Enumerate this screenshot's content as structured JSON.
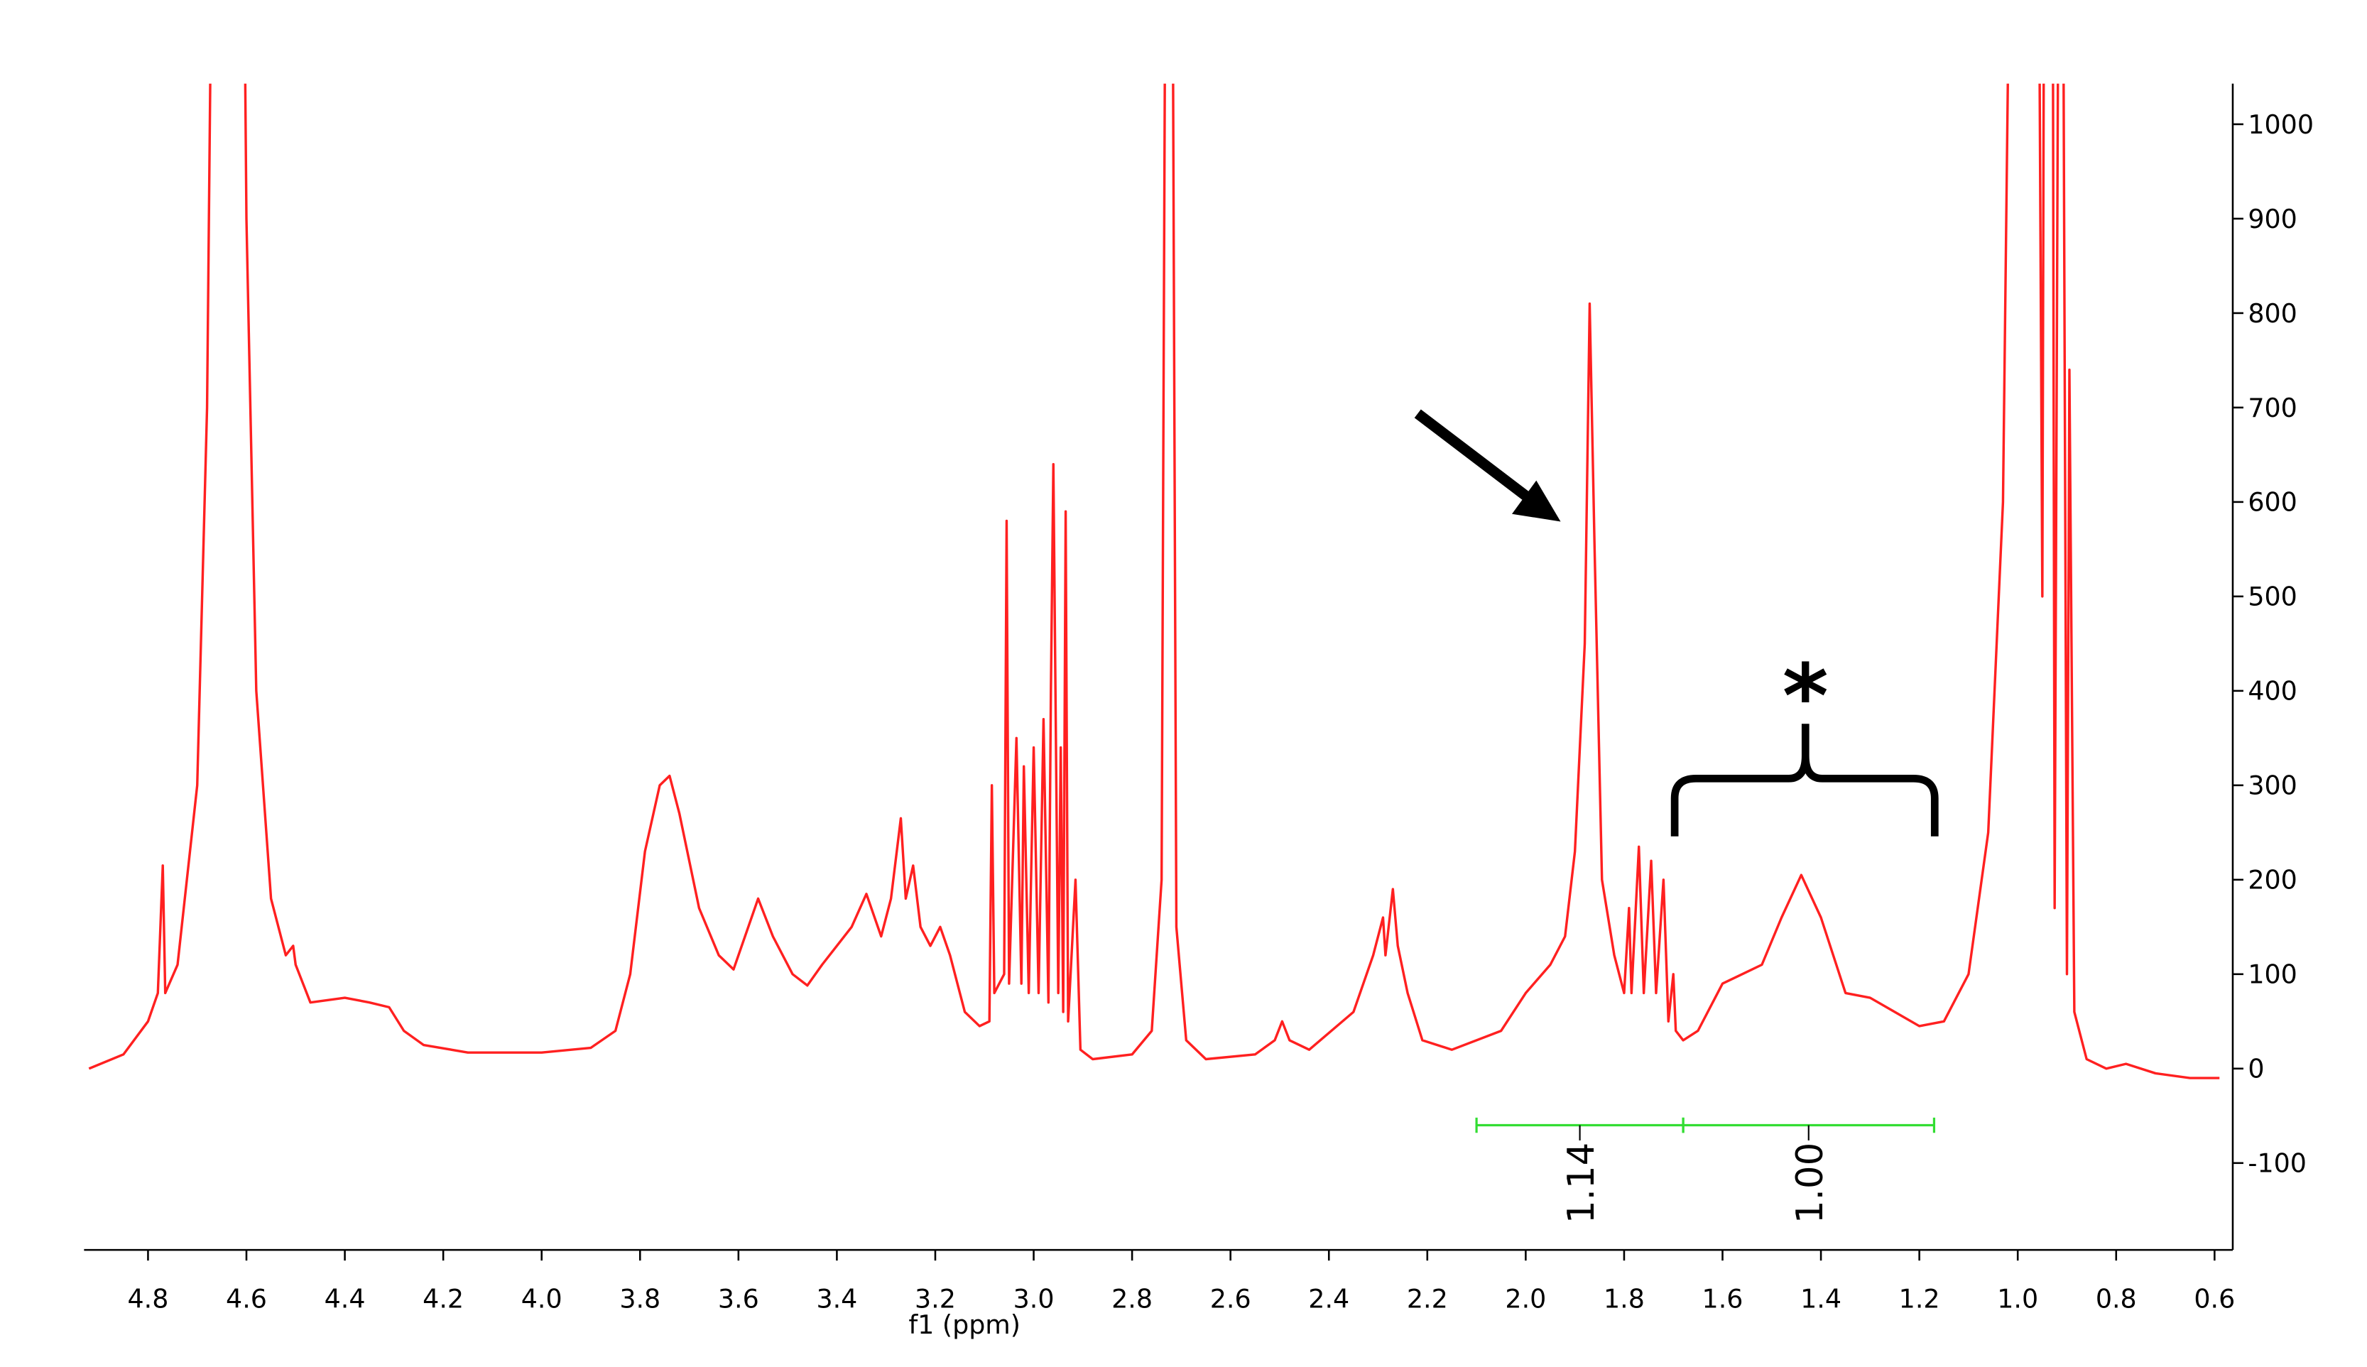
{
  "chart_data": {
    "type": "line",
    "x_label": "f1 (ppm)",
    "x": [
      4.92,
      4.85,
      4.8,
      4.78,
      4.77,
      4.765,
      4.74,
      4.7,
      4.68,
      4.665,
      4.61,
      4.6,
      4.58,
      4.55,
      4.52,
      4.505,
      4.5,
      4.47,
      4.4,
      4.35,
      4.31,
      4.28,
      4.24,
      4.15,
      4.0,
      3.9,
      3.85,
      3.82,
      3.79,
      3.76,
      3.74,
      3.72,
      3.68,
      3.64,
      3.61,
      3.58,
      3.56,
      3.53,
      3.49,
      3.46,
      3.43,
      3.4,
      3.37,
      3.34,
      3.31,
      3.29,
      3.27,
      3.26,
      3.245,
      3.23,
      3.21,
      3.19,
      3.17,
      3.14,
      3.11,
      3.09,
      3.085,
      3.08,
      3.06,
      3.055,
      3.05,
      3.035,
      3.025,
      3.02,
      3.01,
      3.0,
      2.99,
      2.98,
      2.97,
      2.965,
      2.96,
      2.95,
      2.945,
      2.94,
      2.935,
      2.93,
      2.915,
      2.905,
      2.88,
      2.8,
      2.76,
      2.74,
      2.73,
      2.72,
      2.71,
      2.69,
      2.65,
      2.55,
      2.51,
      2.495,
      2.48,
      2.44,
      2.35,
      2.31,
      2.29,
      2.285,
      2.27,
      2.26,
      2.24,
      2.21,
      2.15,
      2.05,
      2.0,
      1.95,
      1.92,
      1.9,
      1.88,
      1.87,
      1.86,
      1.845,
      1.82,
      1.8,
      1.79,
      1.785,
      1.77,
      1.76,
      1.745,
      1.735,
      1.72,
      1.71,
      1.7,
      1.695,
      1.68,
      1.65,
      1.6,
      1.56,
      1.52,
      1.48,
      1.44,
      1.4,
      1.35,
      1.3,
      1.25,
      1.2,
      1.15,
      1.1,
      1.06,
      1.03,
      1.01,
      0.96,
      0.95,
      0.945,
      0.93,
      0.925,
      0.915,
      0.91,
      0.9,
      0.895,
      0.885,
      0.86,
      0.82,
      0.78,
      0.72,
      0.65,
      0.59
    ],
    "series": [
      {
        "color": "#ff2020",
        "values": [
          0,
          15,
          50,
          80,
          215,
          80,
          110,
          300,
          700,
          1500,
          1500,
          900,
          400,
          180,
          120,
          130,
          110,
          70,
          75,
          70,
          65,
          40,
          25,
          17,
          17,
          22,
          40,
          100,
          230,
          300,
          310,
          270,
          170,
          120,
          105,
          150,
          180,
          140,
          100,
          88,
          110,
          130,
          150,
          185,
          140,
          180,
          265,
          180,
          215,
          150,
          130,
          150,
          120,
          60,
          45,
          50,
          300,
          80,
          100,
          580,
          90,
          350,
          90,
          320,
          80,
          340,
          80,
          370,
          70,
          400,
          640,
          80,
          340,
          60,
          590,
          50,
          200,
          20,
          10,
          15,
          40,
          200,
          1500,
          1500,
          150,
          30,
          10,
          15,
          30,
          50,
          30,
          20,
          60,
          120,
          160,
          120,
          190,
          130,
          80,
          30,
          20,
          40,
          80,
          110,
          140,
          230,
          450,
          810,
          550,
          200,
          120,
          80,
          170,
          80,
          235,
          80,
          220,
          80,
          200,
          50,
          100,
          40,
          30,
          40,
          90,
          100,
          110,
          160,
          205,
          160,
          80,
          75,
          60,
          45,
          50,
          100,
          250,
          600,
          1500,
          1500,
          500,
          1500,
          1500,
          170,
          1500,
          1500,
          100,
          740,
          60,
          10,
          0,
          5,
          -5,
          -10,
          -10
        ]
      }
    ],
    "xlim": [
      4.93,
      0.563
    ],
    "xticks": [
      4.8,
      4.6,
      4.4,
      4.2,
      {
        "value": 4,
        "label": "4.0"
      },
      3.8,
      3.6,
      3.4,
      3.2,
      {
        "value": 3,
        "label": "3.0"
      },
      2.8,
      2.6,
      2.4,
      2.2,
      {
        "value": 2,
        "label": "2.0"
      },
      1.8,
      1.6,
      1.4,
      1.2,
      {
        "value": 1,
        "label": "1.0"
      },
      0.8,
      0.6
    ],
    "ylim": [
      -192,
      1043
    ],
    "yticks": [
      -100,
      0,
      100,
      200,
      300,
      400,
      500,
      600,
      700,
      800,
      900,
      1000
    ],
    "integrals": {
      "color": "#33dd33",
      "label_color": "#1a1aff",
      "ranges": [
        [
          2.1,
          1.68
        ],
        [
          1.68,
          1.17
        ]
      ],
      "values": [
        1.14,
        1
      ],
      "value_labels": [
        "1.14",
        "1.00"
      ]
    },
    "annotation": "*"
  }
}
